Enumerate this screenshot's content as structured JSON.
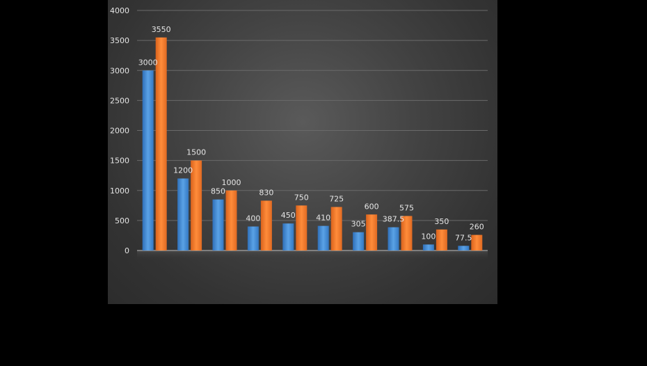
{
  "chart_data": {
    "type": "bar",
    "title": "",
    "xlabel": "",
    "ylabel": "",
    "ylim": [
      0,
      4000
    ],
    "yticks": [
      0,
      500,
      1000,
      1500,
      2000,
      2500,
      3000,
      3500,
      4000
    ],
    "grid": true,
    "legend": "none",
    "categories": [
      "",
      "",
      "",
      "",
      "",
      "",
      "",
      "",
      "",
      ""
    ],
    "series": [
      {
        "values": [
          3000,
          1200,
          850,
          400,
          450,
          410,
          305,
          387.5,
          100,
          77.5
        ],
        "color": "#4a90d9"
      },
      {
        "values": [
          3550,
          1500,
          1000,
          830,
          750,
          725,
          600,
          575,
          350,
          260
        ],
        "color": "#f07a2a"
      }
    ]
  }
}
